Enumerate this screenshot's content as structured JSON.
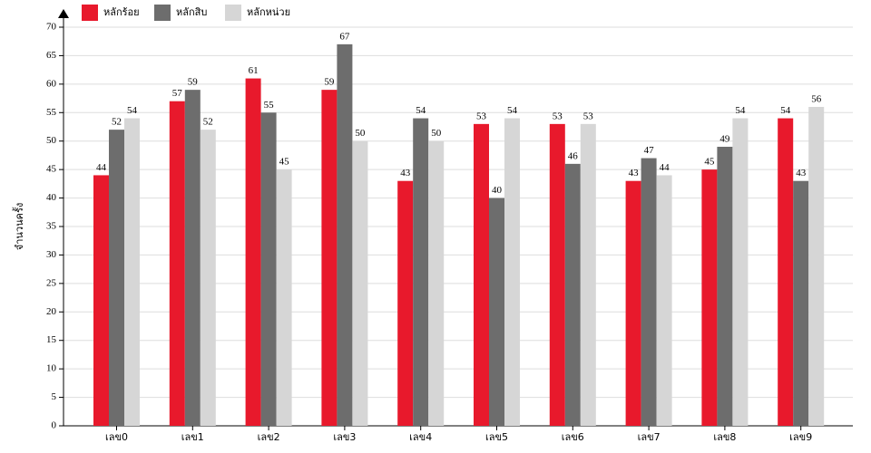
{
  "chart_data": {
    "type": "bar",
    "y_label": "จำนวนครั้ง",
    "categories": [
      "เลข0",
      "เลข1",
      "เลข2",
      "เลข3",
      "เลข4",
      "เลข5",
      "เลข6",
      "เลข7",
      "เลข8",
      "เลข9"
    ],
    "series": [
      {
        "name": "หลักร้อย",
        "color": "#e8192c",
        "values": [
          44,
          57,
          61,
          59,
          43,
          53,
          53,
          43,
          45,
          54
        ]
      },
      {
        "name": "หลักสิบ",
        "color": "#6d6d6d",
        "values": [
          52,
          59,
          55,
          67,
          54,
          40,
          46,
          47,
          49,
          43
        ]
      },
      {
        "name": "หลักหน่วย",
        "color": "#d6d6d6",
        "values": [
          54,
          52,
          45,
          50,
          50,
          54,
          53,
          44,
          54,
          56
        ]
      }
    ],
    "ylim": [
      0,
      70
    ],
    "yticks": [
      0,
      5,
      10,
      15,
      20,
      25,
      30,
      35,
      40,
      45,
      50,
      55,
      60,
      65,
      70
    ],
    "grid": true
  }
}
